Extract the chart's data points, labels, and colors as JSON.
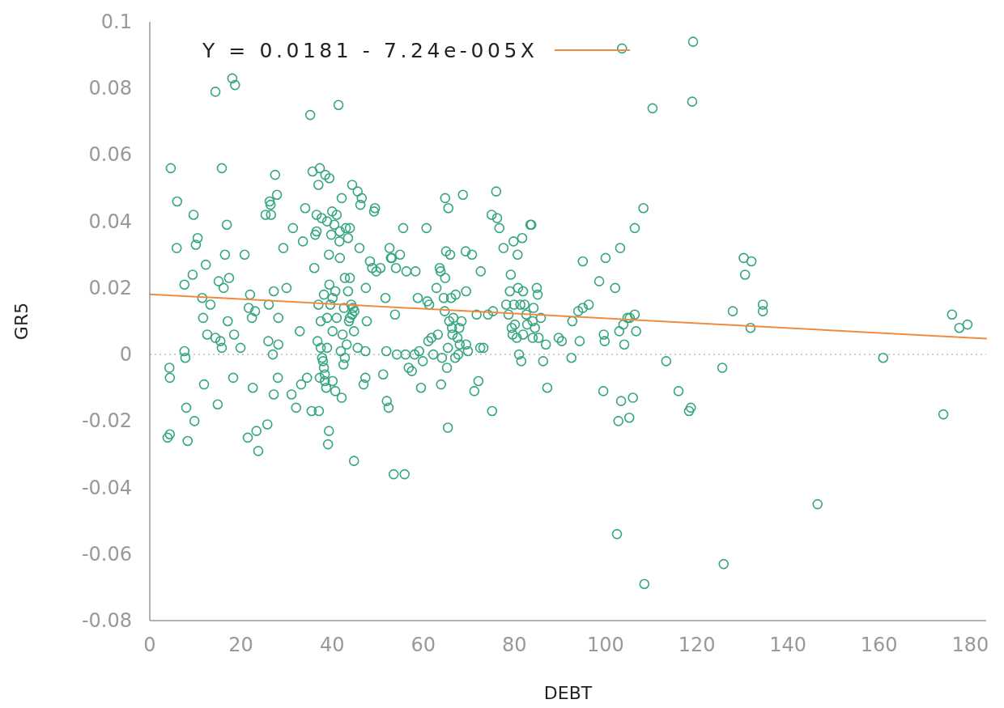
{
  "chart_data": {
    "type": "scatter",
    "xlabel": "DEBT",
    "ylabel": "GR5",
    "xlim": [
      0,
      183.5
    ],
    "ylim": [
      -0.08,
      0.1
    ],
    "xticks": [
      0,
      20,
      40,
      60,
      80,
      100,
      120,
      140,
      160,
      180
    ],
    "yticks": [
      -0.08,
      -0.06,
      -0.04,
      -0.02,
      0,
      0.02,
      0.04,
      0.06,
      0.08,
      0.1
    ],
    "grid": false,
    "legend": "top",
    "ref_lines": [
      {
        "axis": "y",
        "value": 0,
        "color": "#bbbbbb",
        "line_style": "dotted"
      }
    ],
    "series": [
      {
        "marker": "circle",
        "color": "#33a67c",
        "x": [
          3.9,
          4.4,
          4.3,
          4.4,
          4.6,
          6.0,
          5.9,
          7.6,
          7.8,
          7.6,
          8.0,
          8.3,
          9.4,
          9.6,
          9.8,
          10.1,
          10.5,
          11.5,
          11.9,
          11.7,
          12.3,
          12.6,
          13.3,
          14.4,
          14.4,
          14.9,
          15.1,
          15.8,
          15.5,
          15.8,
          16.2,
          16.5,
          16.9,
          17.1,
          17.4,
          18.1,
          18.7,
          18.3,
          18.5,
          19.9,
          20.8,
          21.5,
          21.7,
          22.0,
          22.4,
          22.6,
          23.1,
          23.4,
          23.8,
          25.4,
          25.8,
          26.0,
          26.1,
          26.3,
          26.5,
          26.6,
          27.0,
          27.2,
          27.2,
          27.5,
          27.9,
          28.1,
          28.2,
          28.2,
          29.3,
          30.0,
          31.1,
          31.4,
          32.1,
          32.9,
          33.2,
          33.6,
          34.1,
          34.5,
          35.2,
          35.5,
          35.7,
          36.1,
          36.3,
          36.6,
          36.6,
          36.8,
          37.0,
          37.0,
          37.1,
          37.3,
          37.3,
          37.5,
          37.5,
          37.7,
          37.8,
          38.0,
          38.2,
          38.2,
          38.4,
          38.4,
          38.5,
          38.7,
          38.9,
          38.9,
          38.9,
          39.1,
          39.3,
          39.3,
          39.4,
          39.4,
          39.6,
          39.8,
          40.0,
          40.1,
          40.1,
          40.1,
          40.5,
          40.7,
          40.7,
          41.0,
          41.0,
          41.4,
          41.6,
          41.7,
          41.7,
          42.1,
          41.9,
          42.1,
          42.3,
          42.5,
          42.6,
          42.8,
          42.8,
          43.0,
          43.2,
          43.5,
          43.5,
          43.7,
          43.9,
          43.9,
          43.9,
          44.2,
          44.4,
          44.4,
          44.6,
          44.8,
          44.8,
          44.9,
          45.6,
          45.6,
          46.0,
          46.2,
          46.5,
          46.9,
          47.3,
          47.3,
          47.4,
          47.6,
          48.3,
          48.8,
          49.2,
          49.4,
          49.7,
          50.6,
          51.2,
          51.7,
          51.9,
          52.0,
          52.4,
          52.6,
          52.9,
          53.1,
          53.5,
          53.8,
          54.0,
          54.2,
          54.9,
          55.6,
          55.9,
          56.1,
          56.3,
          56.8,
          57.5,
          58.1,
          58.3,
          58.8,
          59.1,
          59.5,
          59.9,
          60.7,
          60.9,
          61.1,
          61.3,
          61.8,
          62.2,
          62.9,
          63.2,
          63.6,
          63.8,
          63.9,
          64.1,
          64.5,
          64.7,
          64.8,
          64.8,
          65.0,
          65.2,
          65.4,
          65.4,
          65.5,
          65.7,
          65.9,
          66.1,
          66.3,
          66.4,
          66.6,
          67.0,
          67.1,
          67.5,
          67.7,
          67.9,
          68.0,
          68.4,
          68.7,
          69.3,
          69.4,
          69.4,
          69.8,
          70.7,
          71.2,
          71.7,
          72.1,
          72.5,
          72.6,
          73.2,
          74.2,
          75.0,
          75.1,
          75.3,
          76.0,
          76.2,
          76.7,
          77.6,
          78.2,
          78.7,
          79.0,
          79.2,
          79.4,
          79.6,
          79.8,
          79.9,
          80.1,
          80.5,
          80.7,
          80.8,
          81.0,
          81.3,
          81.5,
          81.7,
          81.9,
          81.9,
          82.2,
          82.6,
          82.8,
          83.5,
          83.7,
          84.0,
          84.0,
          84.2,
          84.5,
          84.9,
          85.1,
          85.3,
          85.8,
          86.3,
          86.9,
          87.2,
          89.7,
          90.4,
          92.5,
          92.7,
          94.0,
          94.3,
          95.0,
          95.0,
          96.3,
          98.6,
          99.5,
          99.6,
          99.8,
          100.0,
          102.1,
          102.5,
          102.8,
          103.2,
          103.4,
          103.6,
          103.0,
          103.9,
          104.1,
          104.8,
          105.2,
          105.3,
          106.0,
          106.4,
          106.4,
          106.7,
          108.3,
          108.5,
          110.3,
          113.3,
          116.0,
          118.3,
          118.7,
          119.0,
          119.2,
          125.6,
          125.9,
          127.9,
          130.3,
          130.6,
          131.8,
          132.0,
          134.5,
          134.5,
          146.5,
          160.9,
          174.1,
          176.0,
          177.6,
          179.4
        ],
        "values": [
          -0.025,
          -0.024,
          -0.004,
          -0.007,
          0.056,
          0.046,
          0.032,
          0.001,
          -0.001,
          0.021,
          -0.016,
          -0.026,
          0.024,
          0.042,
          -0.02,
          0.033,
          0.035,
          0.017,
          -0.009,
          0.011,
          0.027,
          0.006,
          0.015,
          0.079,
          0.005,
          -0.015,
          0.022,
          0.056,
          0.004,
          0.002,
          0.02,
          0.03,
          0.039,
          0.01,
          0.023,
          0.083,
          0.081,
          -0.007,
          0.006,
          0.002,
          0.03,
          -0.025,
          0.014,
          0.018,
          0.011,
          -0.01,
          0.013,
          -0.023,
          -0.029,
          0.042,
          -0.021,
          0.004,
          0.015,
          0.046,
          0.045,
          0.042,
          0.0,
          -0.012,
          0.019,
          0.054,
          0.048,
          -0.007,
          0.011,
          0.003,
          0.032,
          0.02,
          -0.012,
          0.038,
          -0.016,
          0.007,
          -0.009,
          0.034,
          0.044,
          -0.007,
          0.072,
          -0.017,
          0.055,
          0.026,
          0.036,
          0.042,
          0.037,
          0.004,
          0.015,
          0.051,
          -0.017,
          0.056,
          -0.007,
          0.01,
          0.002,
          0.041,
          -0.001,
          -0.002,
          -0.004,
          0.018,
          -0.006,
          -0.008,
          0.054,
          -0.01,
          0.04,
          0.011,
          0.002,
          -0.027,
          -0.023,
          0.03,
          0.053,
          0.021,
          0.015,
          0.036,
          0.043,
          0.007,
          -0.008,
          0.017,
          0.039,
          -0.011,
          0.019,
          0.042,
          0.011,
          0.075,
          0.034,
          0.029,
          0.037,
          0.047,
          0.001,
          -0.013,
          0.006,
          -0.003,
          0.014,
          -0.001,
          0.023,
          0.038,
          0.003,
          0.035,
          0.019,
          0.01,
          0.023,
          0.038,
          0.011,
          0.015,
          0.012,
          0.051,
          0.014,
          -0.032,
          0.007,
          0.013,
          0.049,
          0.002,
          0.032,
          0.045,
          0.047,
          -0.009,
          -0.007,
          0.001,
          0.02,
          0.01,
          0.028,
          0.026,
          0.043,
          0.044,
          0.025,
          0.026,
          -0.006,
          0.017,
          0.001,
          -0.014,
          -0.016,
          0.032,
          0.029,
          0.029,
          -0.036,
          0.012,
          0.026,
          0.0,
          0.03,
          0.038,
          -0.036,
          0.0,
          0.025,
          -0.004,
          -0.005,
          0.0,
          0.025,
          0.017,
          0.001,
          -0.01,
          -0.002,
          0.038,
          0.016,
          0.004,
          0.015,
          0.005,
          0.0,
          0.02,
          0.006,
          0.026,
          0.025,
          -0.009,
          -0.001,
          0.017,
          0.013,
          0.047,
          0.023,
          0.031,
          -0.004,
          -0.022,
          0.002,
          0.044,
          0.01,
          0.03,
          0.017,
          0.008,
          0.006,
          0.011,
          -0.001,
          0.018,
          0.005,
          0.0,
          0.008,
          0.003,
          0.01,
          0.048,
          0.031,
          0.019,
          0.003,
          0.001,
          0.03,
          -0.011,
          0.012,
          -0.008,
          0.002,
          0.025,
          0.002,
          0.012,
          0.042,
          -0.017,
          0.013,
          0.049,
          0.041,
          0.038,
          0.032,
          0.015,
          0.012,
          0.019,
          0.024,
          0.008,
          0.006,
          0.034,
          0.015,
          0.009,
          0.005,
          0.03,
          0.02,
          0.0,
          0.015,
          -0.002,
          0.035,
          0.019,
          0.006,
          0.015,
          0.012,
          0.009,
          0.039,
          0.039,
          0.01,
          0.005,
          0.014,
          0.008,
          0.02,
          0.018,
          0.005,
          0.011,
          -0.002,
          0.003,
          -0.01,
          0.005,
          0.004,
          -0.001,
          0.01,
          0.013,
          0.004,
          0.028,
          0.014,
          0.015,
          0.022,
          -0.011,
          0.006,
          0.004,
          0.029,
          0.02,
          -0.054,
          -0.02,
          0.032,
          -0.014,
          0.092,
          0.007,
          0.009,
          0.003,
          0.011,
          -0.019,
          0.011,
          -0.013,
          0.012,
          0.038,
          0.007,
          0.044,
          -0.069,
          0.074,
          -0.002,
          -0.011,
          -0.017,
          -0.016,
          0.076,
          0.094,
          -0.004,
          -0.063,
          0.013,
          0.029,
          0.024,
          0.008,
          0.028,
          0.015,
          0.013,
          -0.045,
          -0.001,
          -0.018,
          0.012,
          0.008,
          0.009
        ]
      },
      {
        "type": "line",
        "marker": "none",
        "name": "Y = 0.0181 - 7.24e-005X",
        "color": "#ef8b3f",
        "x": [
          0,
          183.5
        ],
        "values": [
          0.0181,
          0.0048
        ]
      }
    ]
  }
}
